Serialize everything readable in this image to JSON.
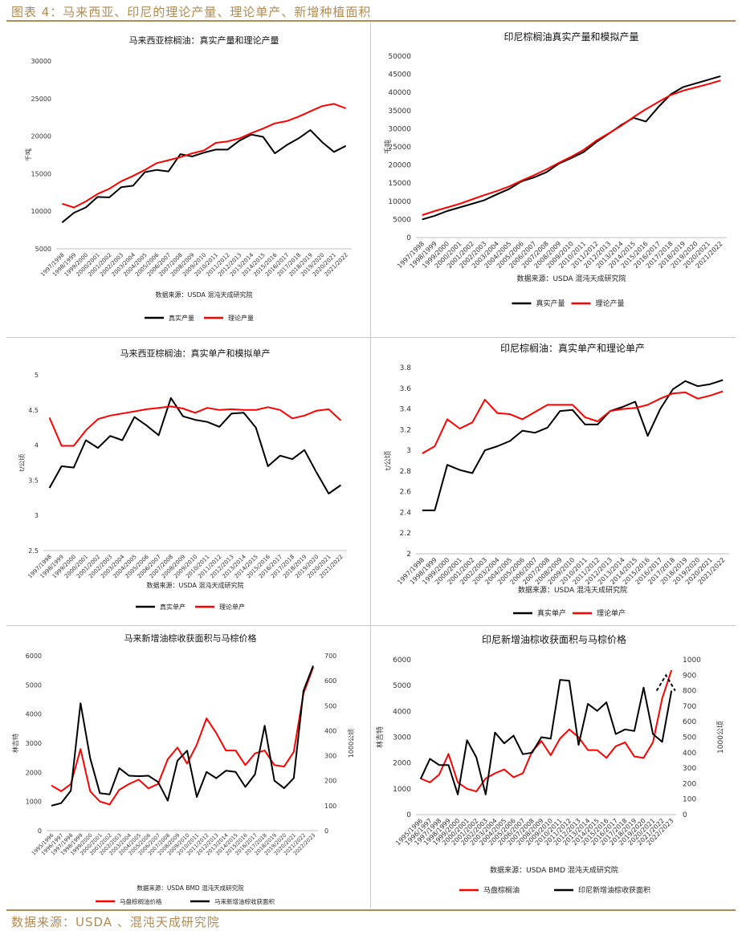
{
  "page": {
    "title": "图表 4：马来西亚、印尼的理论产量、理论单产、新增种植面积",
    "footer": "数据来源：USDA 、混沌天成研究院"
  },
  "colors": {
    "accent": "#b48a52",
    "actual": "#000000",
    "theory": "#ff0000"
  },
  "chart_data": [
    {
      "type": "line",
      "title": "马来西亚棕榈油：真实产量和理论产量",
      "ylabel": "千吨",
      "ylim": [
        5000,
        30000
      ],
      "yticks": [
        5000,
        10000,
        15000,
        20000,
        25000,
        30000
      ],
      "source": "数据来源：USDA 混沌天成研究院",
      "categories": [
        "1997/1998",
        "1998/1999",
        "1999/2000",
        "2000/2001",
        "2001/2002",
        "2002/2003",
        "2003/2004",
        "2004/2005",
        "2005/2006",
        "2006/2007",
        "2007/2008",
        "2008/2009",
        "2009/2010",
        "2010/2011",
        "2011/2012",
        "2012/2013",
        "2013/2014",
        "2014/2015",
        "2015/2016",
        "2016/2017",
        "2017/2018",
        "2018/2019",
        "2019/2020",
        "2020/2021",
        "2021/2022"
      ],
      "series": [
        {
          "name": "真实产量",
          "color": "#000000",
          "values": [
            8500,
            9800,
            10500,
            11900,
            11850,
            13200,
            13400,
            15200,
            15500,
            15300,
            17600,
            17300,
            17800,
            18200,
            18200,
            19400,
            20200,
            19900,
            17700,
            18800,
            19700,
            20800,
            19200,
            17900,
            18700
          ]
        },
        {
          "name": "理论产量",
          "color": "#ff0000",
          "values": [
            11000,
            10500,
            11300,
            12300,
            13000,
            14000,
            14700,
            15500,
            16400,
            16800,
            17200,
            17700,
            18100,
            19100,
            19300,
            19700,
            20400,
            21000,
            21700,
            22000,
            22600,
            23300,
            24000,
            24300,
            23700
          ]
        }
      ]
    },
    {
      "type": "line",
      "title": "印尼棕榈油真实产量和模拟产量",
      "ylabel": "千吨",
      "ylim": [
        0,
        50000
      ],
      "yticks": [
        0,
        5000,
        10000,
        15000,
        20000,
        25000,
        30000,
        35000,
        40000,
        45000,
        50000
      ],
      "source": "数据来源：USDA 混沌天成研究院",
      "categories": [
        "1997/1998",
        "1998/1999",
        "1999/2000",
        "2000/2001",
        "2001/2002",
        "2002/2003",
        "2003/2004",
        "2004/2005",
        "2005/2006",
        "2006/2007",
        "2007/2008",
        "2008/2009",
        "2009/2010",
        "2010/2011",
        "2011/2012",
        "2012/2013",
        "2013/2014",
        "2014/2015",
        "2015/2016",
        "2016/2017",
        "2017/2018",
        "2018/2019",
        "2019/2020",
        "2020/2021",
        "2021/2022"
      ],
      "series": [
        {
          "name": "真实产量",
          "color": "#000000",
          "values": [
            5000,
            6000,
            7300,
            8300,
            9300,
            10300,
            11900,
            13400,
            15500,
            16600,
            18000,
            20400,
            21900,
            23600,
            26300,
            28600,
            31000,
            33000,
            32000,
            36000,
            39500,
            41500,
            42500,
            43500,
            44500
          ]
        },
        {
          "name": "理论产量",
          "color": "#ff0000",
          "values": [
            6200,
            7300,
            8300,
            9300,
            10500,
            11700,
            12800,
            14100,
            15700,
            17200,
            18800,
            20600,
            22300,
            24200,
            26700,
            28700,
            30800,
            33200,
            35400,
            37400,
            39300,
            40500,
            41400,
            42300,
            43300
          ]
        }
      ]
    },
    {
      "type": "line",
      "title": "马来西亚棕榈油：真实单产和模拟单产",
      "ylabel": "t/公顷",
      "ylim": [
        2.5,
        5
      ],
      "yticks": [
        2.5,
        3,
        3.5,
        4,
        4.5,
        5
      ],
      "source": "数据来源：USDA 混沌天成研究院",
      "categories": [
        "1997/1998",
        "1998/1999",
        "1999/2000",
        "2000/2001",
        "2001/2002",
        "2002/2003",
        "2003/2004",
        "2004/2005",
        "2005/2006",
        "2006/2007",
        "2007/2008",
        "2008/2009",
        "2009/2010",
        "2010/2011",
        "2011/2012",
        "2012/2013",
        "2013/2014",
        "2014/2015",
        "2015/2016",
        "2016/2017",
        "2017/2018",
        "2018/2019",
        "2019/2020",
        "2020/2021",
        "2021/2022"
      ],
      "series": [
        {
          "name": "真实单产",
          "color": "#000000",
          "values": [
            3.39,
            3.7,
            3.68,
            4.07,
            3.96,
            4.13,
            4.07,
            4.4,
            4.28,
            4.14,
            4.67,
            4.41,
            4.36,
            4.33,
            4.26,
            4.45,
            4.46,
            4.25,
            3.7,
            3.85,
            3.8,
            3.93,
            3.61,
            3.31,
            3.43
          ]
        },
        {
          "name": "理论单产",
          "color": "#ff0000",
          "values": [
            4.39,
            3.99,
            3.99,
            4.21,
            4.37,
            4.42,
            4.45,
            4.48,
            4.51,
            4.53,
            4.55,
            4.52,
            4.46,
            4.53,
            4.5,
            4.51,
            4.5,
            4.5,
            4.54,
            4.5,
            4.38,
            4.42,
            4.49,
            4.51,
            4.35
          ]
        }
      ]
    },
    {
      "type": "line",
      "title": "印尼棕榈油：真实单产和理论单产",
      "ylabel": "t/公顷",
      "ylim": [
        2,
        3.8
      ],
      "yticks": [
        2,
        2.2,
        2.4,
        2.6,
        2.8,
        3,
        3.2,
        3.4,
        3.6,
        3.8
      ],
      "source": "数据来源：USDA 混沌天成研究院",
      "categories": [
        "1997/1998",
        "1998/1999",
        "1999/2000",
        "2000/2001",
        "2001/2002",
        "2002/2003",
        "2003/2004",
        "2004/2005",
        "2005/2006",
        "2006/2007",
        "2007/2008",
        "2008/2009",
        "2009/2010",
        "2010/2011",
        "2011/2012",
        "2012/2013",
        "2013/2014",
        "2014/2015",
        "2015/2016",
        "2016/2017",
        "2017/2018",
        "2018/2019",
        "2019/2020",
        "2020/2021",
        "2021/2022"
      ],
      "series": [
        {
          "name": "真实单产",
          "color": "#000000",
          "values": [
            2.42,
            2.42,
            2.86,
            2.81,
            2.78,
            3.0,
            3.04,
            3.09,
            3.19,
            3.17,
            3.22,
            3.38,
            3.39,
            3.25,
            3.25,
            3.38,
            3.42,
            3.47,
            3.14,
            3.4,
            3.59,
            3.67,
            3.62,
            3.64,
            3.68
          ]
        },
        {
          "name": "理论单产",
          "color": "#ff0000",
          "values": [
            2.97,
            3.04,
            3.3,
            3.21,
            3.27,
            3.49,
            3.36,
            3.35,
            3.3,
            3.37,
            3.44,
            3.44,
            3.44,
            3.32,
            3.28,
            3.38,
            3.4,
            3.41,
            3.44,
            3.5,
            3.55,
            3.56,
            3.5,
            3.53,
            3.57
          ]
        }
      ]
    },
    {
      "type": "line",
      "title": "马来新增油棕收获面积与马棕价格",
      "ylabel": "林吉特",
      "y2label": "1000公顷",
      "ylim": [
        0,
        6000
      ],
      "yticks": [
        0,
        1000,
        2000,
        3000,
        4000,
        5000,
        6000
      ],
      "y2lim": [
        0,
        700
      ],
      "y2ticks": [
        0,
        100,
        200,
        300,
        400,
        500,
        600,
        700
      ],
      "source": "数据来源：USDA BMD 混沌天成研究院",
      "categories": [
        "1995/1996",
        "1996/1997",
        "1997/1998",
        "1998/1999",
        "1999/2000",
        "2000/2001",
        "2001/2002",
        "2002/2003",
        "2003/2004",
        "2004/2005",
        "2005/2006",
        "2006/2007",
        "2007/2008",
        "2008/2009",
        "2009/2010",
        "2010/2011",
        "2011/2012",
        "2012/2013",
        "2013/2014",
        "2014/2015",
        "2015/2016",
        "2016/2017",
        "2017/2018",
        "2018/2019",
        "2019/2020",
        "2020/2021",
        "2021/2022",
        "2022/2023"
      ],
      "series": [
        {
          "name": "马盘棕榈油价格",
          "color": "#ff0000",
          "axis": "left",
          "values": [
            1550,
            1350,
            1600,
            2800,
            1350,
            1000,
            900,
            1400,
            1600,
            1750,
            1450,
            1600,
            2450,
            2850,
            2300,
            2950,
            3850,
            3350,
            2750,
            2750,
            2250,
            2650,
            2750,
            2250,
            2200,
            2700,
            4700,
            5600
          ]
        },
        {
          "name": "马来新增油棕收获面积",
          "color": "#000000",
          "axis": "right",
          "values": [
            100,
            110,
            160,
            510,
            290,
            150,
            145,
            250,
            220,
            218,
            220,
            195,
            120,
            280,
            320,
            135,
            235,
            210,
            240,
            235,
            175,
            225,
            420,
            200,
            170,
            210,
            560,
            660
          ]
        }
      ]
    },
    {
      "type": "line",
      "title": "印尼新增油棕收获面积与马棕价格",
      "ylabel": "林吉特",
      "y2label": "1000公顷",
      "ylim": [
        0,
        6000
      ],
      "yticks": [
        0,
        1000,
        2000,
        3000,
        4000,
        5000,
        6000
      ],
      "y2lim": [
        0,
        1000
      ],
      "y2ticks": [
        0,
        100,
        200,
        300,
        400,
        500,
        600,
        700,
        800,
        900,
        1000
      ],
      "source": "数据来源：USDA BMD 混沌天成研究院",
      "categories": [
        "1995/1996",
        "1996/1997",
        "1997/1998",
        "1998/1999",
        "1999/2000",
        "2000/2001",
        "2001/2002",
        "2002/2003",
        "2003/2004",
        "2004/2005",
        "2005/2006",
        "2006/2007",
        "2007/2008",
        "2008/2009",
        "2009/2010",
        "2010/2011",
        "2011/2012",
        "2012/2013",
        "2013/2014",
        "2014/2015",
        "2015/2016",
        "2016/2017",
        "2017/2018",
        "2018/2019",
        "2019/2020",
        "2020/2021",
        "2021/2022",
        "2022/2023"
      ],
      "series": [
        {
          "name": "马盘棕榈油",
          "color": "#ff0000",
          "axis": "left",
          "values": [
            1400,
            1250,
            1550,
            2350,
            1250,
            1000,
            900,
            1400,
            1600,
            1750,
            1450,
            1600,
            2450,
            2850,
            2300,
            2950,
            3300,
            3000,
            2500,
            2500,
            2200,
            2650,
            2800,
            2250,
            2200,
            2800,
            4500,
            5600
          ]
        },
        {
          "name": "印尼新增油棕收获面积",
          "color": "#000000",
          "axis": "right",
          "values": [
            230,
            360,
            320,
            320,
            130,
            480,
            370,
            130,
            530,
            460,
            510,
            390,
            400,
            500,
            490,
            870,
            865,
            450,
            715,
            670,
            725,
            520,
            550,
            540,
            820,
            520,
            470,
            800
          ],
          "dashed_tail": [
            800,
            900,
            800
          ]
        }
      ]
    }
  ]
}
